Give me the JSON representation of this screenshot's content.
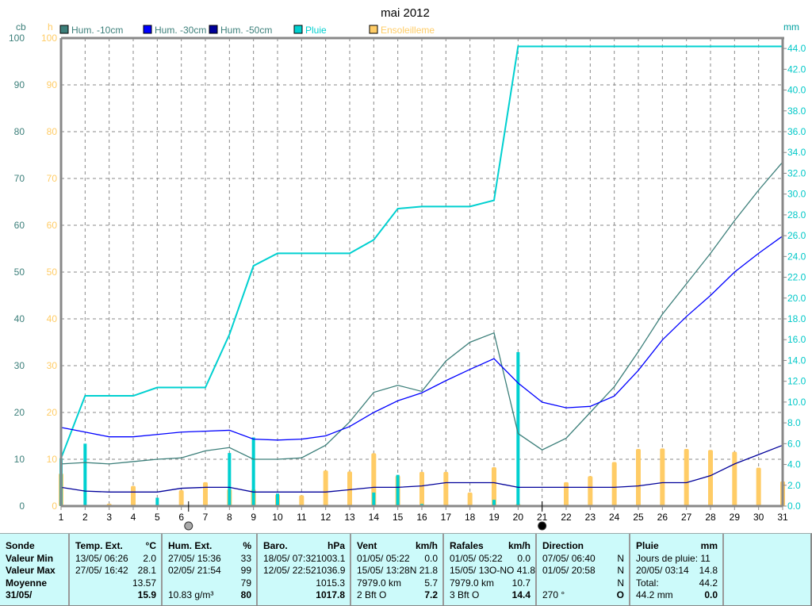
{
  "chart_data": {
    "type": "line",
    "title": "mai 2012",
    "categories": [
      1,
      2,
      3,
      4,
      5,
      6,
      7,
      8,
      9,
      10,
      11,
      12,
      13,
      14,
      15,
      16,
      17,
      18,
      19,
      20,
      21,
      22,
      23,
      24,
      25,
      26,
      27,
      28,
      29,
      30,
      31
    ],
    "left_axis": {
      "unit_cb": "cb",
      "unit_h": "h",
      "range": [
        0,
        100
      ],
      "ticks": [
        0,
        10,
        20,
        30,
        40,
        50,
        60,
        70,
        80,
        90,
        100
      ]
    },
    "right_axis": {
      "unit": "mm",
      "range": [
        0,
        45
      ],
      "ticks": [
        "0.0",
        "2.0",
        "4.0",
        "6.0",
        "8.0",
        "10.0",
        "12.0",
        "14.0",
        "16.0",
        "18.0",
        "20.0",
        "22.0",
        "24.0",
        "26.0",
        "28.0",
        "30.0",
        "32.0",
        "34.0",
        "36.0",
        "38.0",
        "40.0",
        "42.0",
        "44.0"
      ]
    },
    "grid": true,
    "legend_placement": "top",
    "series": [
      {
        "name": "Hum. -10cm",
        "type": "line",
        "axis": "left",
        "color": "#3c7f7a",
        "values": [
          9,
          9.3,
          9,
          9.5,
          10,
          10.3,
          11.8,
          12.5,
          10,
          10,
          10.3,
          13,
          18,
          24.3,
          25.8,
          24.5,
          31,
          35,
          37,
          15.5,
          12,
          14.5,
          20,
          25.5,
          33,
          41,
          47.5,
          54,
          61,
          67.5,
          73.5
        ]
      },
      {
        "name": "Hum. -30cm",
        "type": "line",
        "axis": "left",
        "color": "#0000ff",
        "values": [
          16.8,
          15.8,
          14.8,
          14.8,
          15.3,
          15.8,
          16,
          16.2,
          14.3,
          14.1,
          14.3,
          15,
          17,
          20,
          22.5,
          24.2,
          26.8,
          29.2,
          31.5,
          26.3,
          22.2,
          21,
          21.3,
          23.5,
          29,
          35.5,
          40.5,
          45,
          50,
          54,
          57.7
        ]
      },
      {
        "name": "Hum. -50cm",
        "type": "line",
        "axis": "left",
        "color": "#00009a",
        "values": [
          4,
          3.2,
          3,
          3,
          3,
          3.8,
          4,
          4,
          3,
          3,
          3,
          3,
          3.5,
          4,
          4,
          4.3,
          5,
          5,
          5,
          4,
          4,
          4,
          4,
          4,
          4.3,
          5,
          5,
          6.5,
          9,
          11,
          13
        ]
      },
      {
        "name": "Pluie",
        "type": "bar+cumulative",
        "axis": "right",
        "color": "#00d0d0",
        "values": [
          4.6,
          6.0,
          0,
          0,
          0.8,
          0,
          0,
          5.1,
          6.6,
          1.2,
          0,
          0,
          0,
          1.3,
          3.0,
          0.2,
          0,
          0,
          0.6,
          14.8,
          0,
          0,
          0,
          0,
          0,
          0,
          0,
          0,
          0,
          0,
          0
        ]
      },
      {
        "name": "Ensoleilleme",
        "type": "bar",
        "axis": "left",
        "color": "#ffcc66",
        "values": [
          7,
          0,
          0.5,
          4.3,
          0,
          3.4,
          5.1,
          3.6,
          3.6,
          2.5,
          2.3,
          7.6,
          7.4,
          11.3,
          6.5,
          7.3,
          7.3,
          2.9,
          8.3,
          0.5,
          0.2,
          5.1,
          6.4,
          9.4,
          12.2,
          12.3,
          12.2,
          12.0,
          11.6,
          8.2,
          5.3
        ]
      }
    ],
    "moon_icons": [
      {
        "day": 6.3,
        "phase": "full-moon"
      },
      {
        "day": 21,
        "phase": "new-moon"
      }
    ]
  },
  "table": {
    "labels": {
      "title": "Sonde",
      "min": "Valeur Min",
      "max": "Valeur Max",
      "avg": "Moyenne",
      "current": "31/05/"
    },
    "temp": {
      "title": "Temp. Ext.",
      "unit": "°C",
      "min_date": "13/05/  06:26",
      "min": "2.0",
      "max_date": "27/05/  16:42",
      "max": "28.1",
      "avg": "13.57",
      "current": "15.9"
    },
    "hum": {
      "title": "Hum. Ext.",
      "unit": "%",
      "min_date": "27/05/  15:36",
      "min": "33",
      "max_date": "02/05/  21:54",
      "max": "99",
      "avg": "79",
      "extra": "10.83 g/m³",
      "current": "80"
    },
    "baro": {
      "title": "Baro.",
      "unit": "hPa",
      "min_date": "18/05/  07:32",
      "min": "1003.1",
      "max_date": "12/05/  22:52",
      "max": "1036.9",
      "avg": "1015.3",
      "current": "1017.8"
    },
    "vent": {
      "title": "Vent",
      "unit": "km/h",
      "min_date": "01/05/  05:22",
      "min": "0.0",
      "max_date": "15/05/  13:28",
      "max": "N 21.8",
      "dist": "7979.0 km",
      "avg": "5.7",
      "bft": "2 Bft O",
      "current": "7.2"
    },
    "rafales": {
      "title": "Rafales",
      "unit": "km/h",
      "min_date": "01/05/  05:22",
      "min": "0.0",
      "max_date": "15/05/  13",
      "max": "O-NO 41.8",
      "dist": "7979.0 km",
      "avg": "10.7",
      "bft": "3 Bft O",
      "current": "14.4"
    },
    "direction": {
      "title": "Direction",
      "min_date": "07/05/  06:40",
      "min": "N",
      "max_date": "01/05/  20:58",
      "max": "N",
      "avg": "N",
      "deg": "270 °",
      "current": "O"
    },
    "pluie": {
      "title": "Pluie",
      "unit": "mm",
      "days": "Jours de pluie: 11",
      "max_date": "20/05/  03:14",
      "max": "14.8",
      "total_label": "Total:",
      "total": "44.2",
      "sum": "44.2 mm",
      "current": "0.0"
    }
  }
}
